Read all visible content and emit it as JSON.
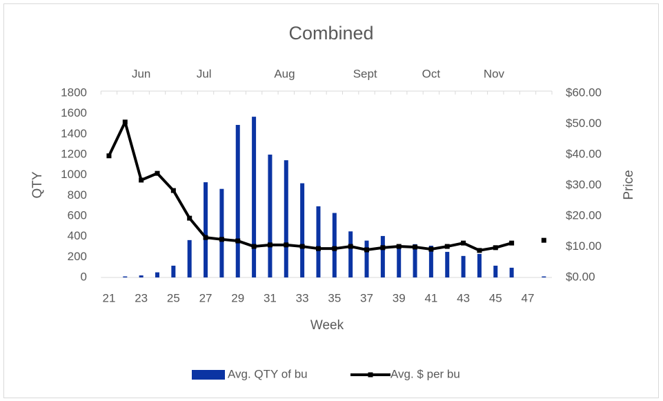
{
  "chart_data": {
    "type": "bar_line",
    "title": "Combined",
    "x_label": "Week",
    "y_label": "QTY",
    "y2_label": "Price",
    "months": [
      "Jun",
      "Jul",
      "Aug",
      "Sept",
      "Oct",
      "Nov"
    ],
    "categories": [
      21,
      null,
      23,
      null,
      25,
      null,
      27,
      null,
      29,
      null,
      31,
      null,
      33,
      null,
      35,
      null,
      37,
      null,
      39,
      null,
      41,
      null,
      43,
      null,
      45,
      null,
      47,
      null
    ],
    "series": [
      {
        "name": "Avg. QTY of bu",
        "type": "bar",
        "color": "#0b34a3",
        "values": [
          0,
          10,
          20,
          50,
          115,
          365,
          930,
          865,
          1490,
          1570,
          1200,
          1145,
          920,
          695,
          630,
          450,
          360,
          405,
          310,
          325,
          310,
          250,
          210,
          230,
          115,
          95,
          0,
          10
        ]
      },
      {
        "name": "Avg. $ per bu",
        "type": "line",
        "axis": "y2",
        "color": "#000000",
        "values": [
          39.6,
          50.6,
          31.7,
          33.9,
          28.3,
          19.3,
          13.0,
          12.4,
          11.9,
          10.1,
          10.6,
          10.6,
          10.1,
          9.4,
          9.4,
          10.1,
          9.0,
          9.7,
          10.1,
          9.9,
          9.2,
          10.1,
          11.2,
          8.8,
          9.7,
          11.2,
          null,
          12.1
        ]
      }
    ],
    "ylim": [
      0,
      1800
    ],
    "yticks": [
      0,
      200,
      400,
      600,
      800,
      1000,
      1200,
      1400,
      1600,
      1800
    ],
    "y2lim": [
      0,
      60
    ],
    "y2ticks": [
      {
        "value": 0,
        "label": "$0.00"
      },
      {
        "value": 10,
        "label": "$10.00"
      },
      {
        "value": 20,
        "label": "$20.00"
      },
      {
        "value": 30,
        "label": "$30.00"
      },
      {
        "value": 40,
        "label": "$40.00"
      },
      {
        "value": 50,
        "label": "$50.00"
      },
      {
        "value": 60,
        "label": "$60.00"
      }
    ],
    "legend": "bottom"
  }
}
